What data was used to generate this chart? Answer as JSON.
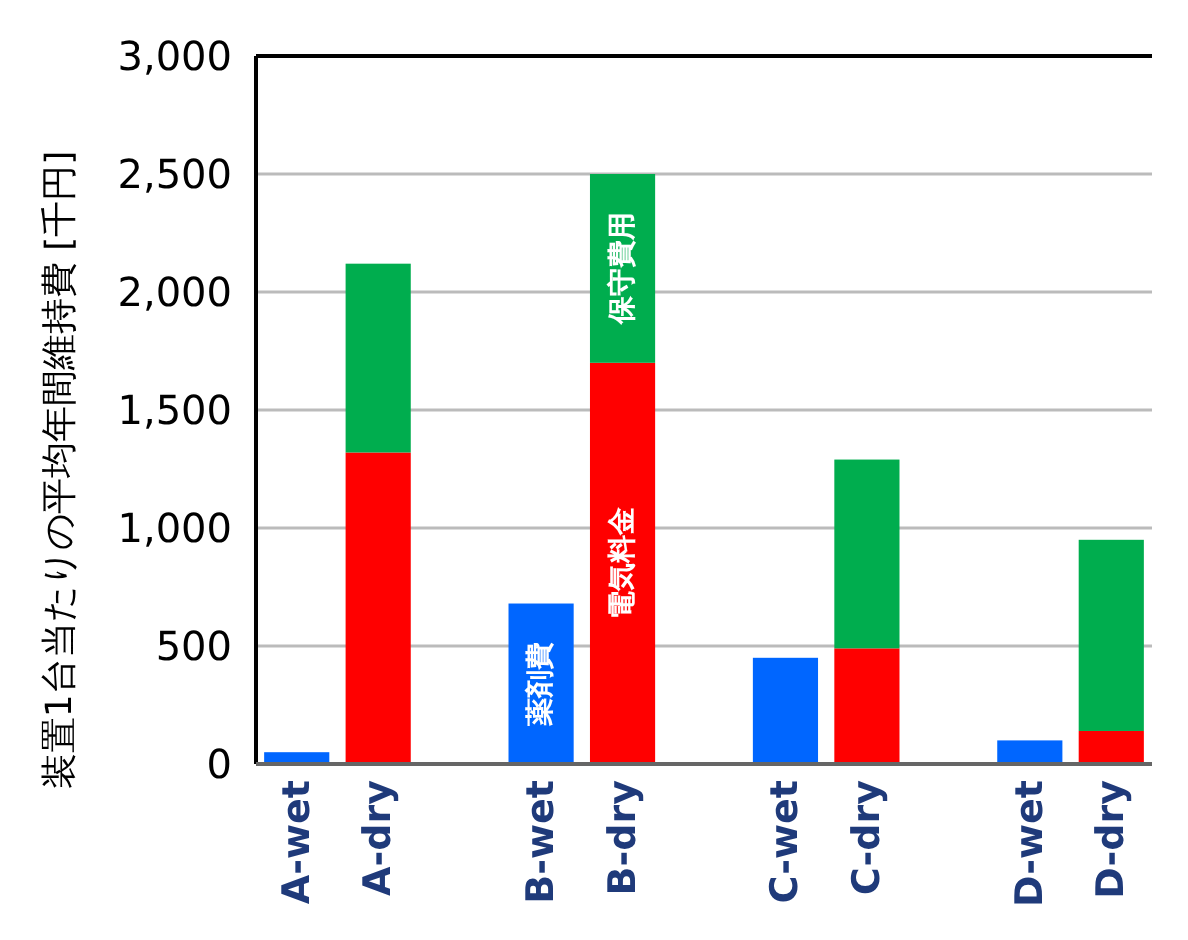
{
  "chart_data": {
    "type": "bar",
    "stacked": true,
    "ylabel": "装置1台当たりの平均年間維持費 [千円]",
    "categories": [
      "A-wet",
      "A-dry",
      null,
      "B-wet",
      "B-dry",
      null,
      "C-wet",
      "C-dry",
      null,
      "D-wet",
      "D-dry"
    ],
    "series": [
      {
        "name": "薬剤費",
        "color": "#0066ff",
        "values": [
          50,
          null,
          null,
          680,
          null,
          null,
          450,
          null,
          null,
          100,
          null
        ]
      },
      {
        "name": "電気料金",
        "color": "#ff0000",
        "values": [
          null,
          1320,
          null,
          null,
          1700,
          null,
          null,
          490,
          null,
          null,
          140
        ]
      },
      {
        "name": "保守費用",
        "color": "#00ad4e",
        "values": [
          null,
          800,
          null,
          null,
          800,
          null,
          null,
          800,
          null,
          null,
          810
        ]
      }
    ],
    "ylim": [
      0,
      3000
    ],
    "yticks": [
      {
        "value": 0,
        "label": "0"
      },
      {
        "value": 500,
        "label": "500"
      },
      {
        "value": 1000,
        "label": "1,000"
      },
      {
        "value": 1500,
        "label": "1,500"
      },
      {
        "value": 2000,
        "label": "2,000"
      },
      {
        "value": 2500,
        "label": "2,500"
      },
      {
        "value": 3000,
        "label": "3,000"
      }
    ],
    "grid": "y"
  }
}
